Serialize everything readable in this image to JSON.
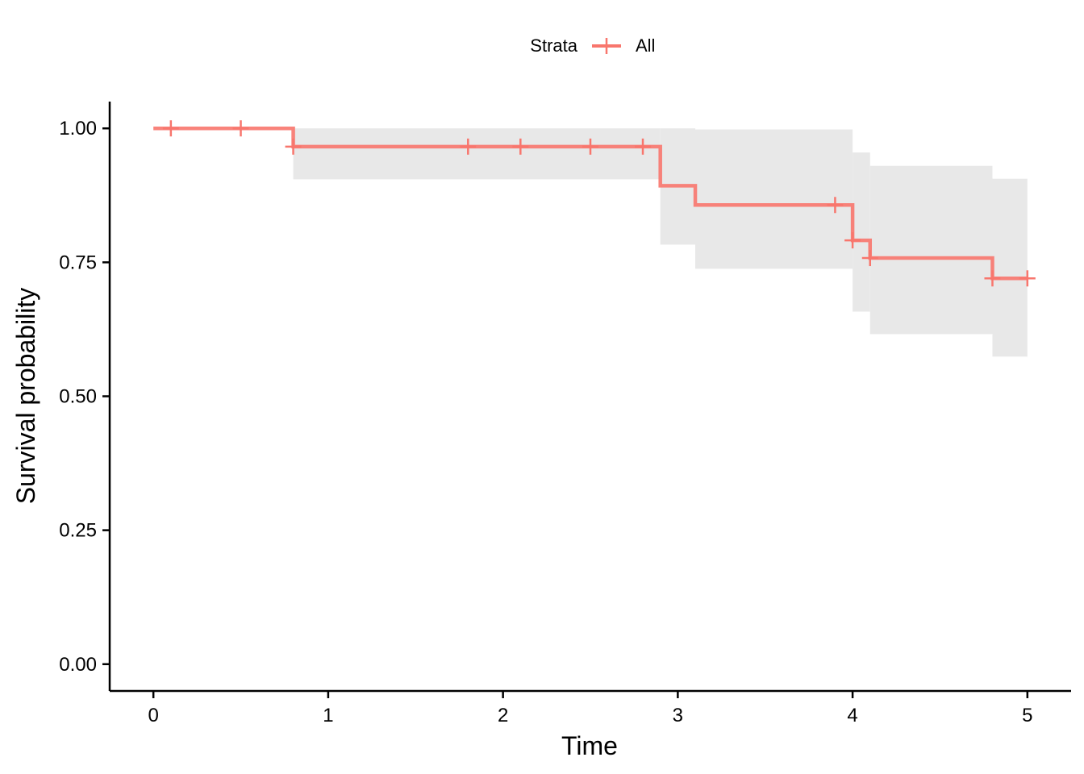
{
  "chart_data": {
    "type": "line",
    "style": "step",
    "title": "",
    "xlabel": "Time",
    "ylabel": "Survival probability",
    "xlim": [
      -0.25,
      5.25
    ],
    "ylim": [
      -0.05,
      1.05
    ],
    "x_ticks": [
      0,
      1,
      2,
      3,
      4,
      5
    ],
    "x_tick_labels": [
      "0",
      "1",
      "2",
      "3",
      "4",
      "5"
    ],
    "y_ticks": [
      0,
      0.25,
      0.5,
      0.75,
      1
    ],
    "y_tick_labels": [
      "0.00",
      "0.25",
      "0.50",
      "0.75",
      "1.00"
    ],
    "grid": false,
    "legend": {
      "title": "Strata",
      "position": "top",
      "entries": [
        "All"
      ]
    },
    "series": [
      {
        "name": "All",
        "color": "#F8766D",
        "steps": [
          {
            "x": 0,
            "y": 1.0
          },
          {
            "x": 0.8,
            "y": 0.966
          },
          {
            "x": 2.9,
            "y": 0.893
          },
          {
            "x": 3.1,
            "y": 0.857
          },
          {
            "x": 4.0,
            "y": 0.791
          },
          {
            "x": 4.1,
            "y": 0.758
          },
          {
            "x": 4.8,
            "y": 0.72
          }
        ],
        "x_end": 5.0,
        "censor_times": [
          0.1,
          0.5,
          0.8,
          1.8,
          2.1,
          2.5,
          2.8,
          3.9,
          4.0,
          4.1,
          4.8,
          5.0
        ],
        "confidence_band": {
          "color": "#E8E8E8",
          "steps": [
            {
              "x": 0,
              "lower": 1.0,
              "upper": 1.0
            },
            {
              "x": 0.8,
              "lower": 0.905,
              "upper": 1.0
            },
            {
              "x": 2.9,
              "lower": 0.783,
              "upper": 1.0
            },
            {
              "x": 3.1,
              "lower": 0.738,
              "upper": 0.998
            },
            {
              "x": 4.0,
              "lower": 0.658,
              "upper": 0.955
            },
            {
              "x": 4.1,
              "lower": 0.616,
              "upper": 0.93
            },
            {
              "x": 4.8,
              "lower": 0.574,
              "upper": 0.906
            }
          ]
        }
      }
    ]
  }
}
